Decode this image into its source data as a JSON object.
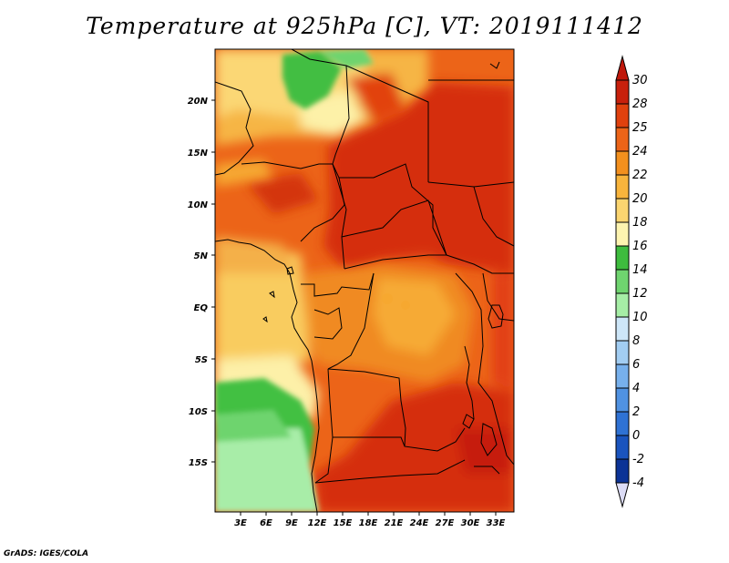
{
  "title": "Temperature at 925hPa [C], VT: 2019111412",
  "footer": "GrADS: IGES/COLA",
  "map": {
    "x_ticks": [
      "3E",
      "6E",
      "9E",
      "12E",
      "15E",
      "18E",
      "21E",
      "24E",
      "27E",
      "30E",
      "33E"
    ],
    "y_ticks": [
      "20N",
      "15N",
      "10N",
      "5N",
      "EQ",
      "5S",
      "10S",
      "15S"
    ]
  },
  "colorbar": {
    "labels": [
      "30",
      "28",
      "25",
      "24",
      "22",
      "20",
      "18",
      "16",
      "14",
      "12",
      "10",
      "8",
      "6",
      "4",
      "2",
      "0",
      "-2",
      "-4"
    ],
    "colors": [
      "#c8200c",
      "#e0410e",
      "#ec6418",
      "#f3901e",
      "#f8b43c",
      "#fbd570",
      "#fdf4b0",
      "#3ebc3e",
      "#6fd46f",
      "#a6eea6",
      "#cde6f8",
      "#a2cdf2",
      "#77b0ec",
      "#5092e2",
      "#2f72d4",
      "#1a54be",
      "#0c3396",
      "#081a6c"
    ],
    "top_arrow_color": "#c0180b",
    "bottom_arrow_color": "#dcdcf6"
  }
}
